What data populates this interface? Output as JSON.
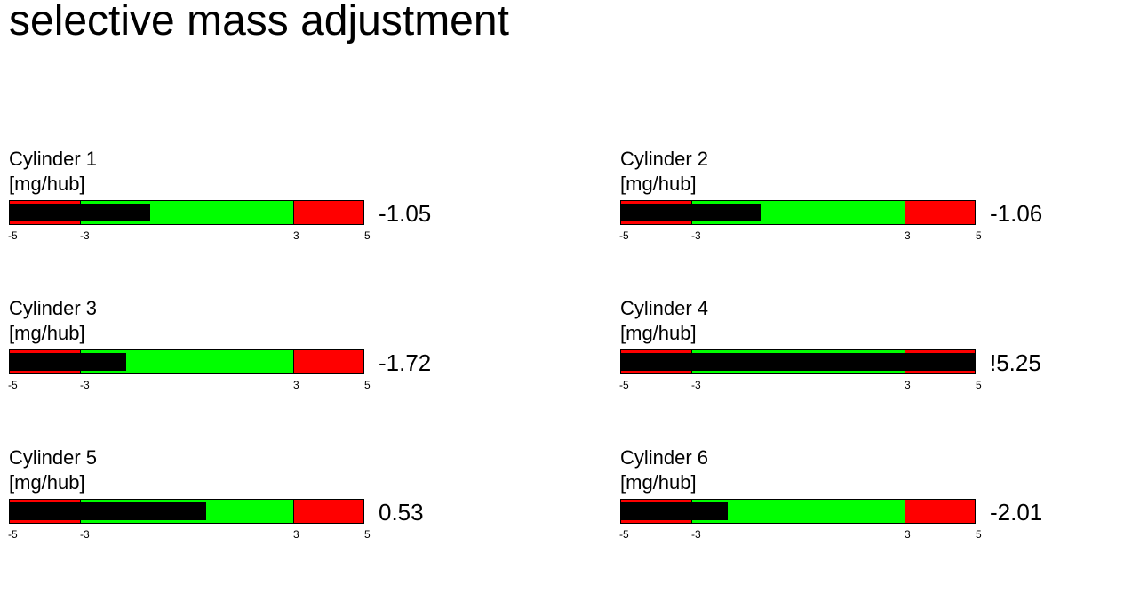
{
  "title": "selective mass adjustment",
  "scale": {
    "min": -5,
    "max": 5,
    "ok_low": -3,
    "ok_high": 3,
    "ticks": [
      "-5",
      "-3",
      "3",
      "5"
    ]
  },
  "colors": {
    "warning_zone": "#ff0000",
    "ok_zone": "#00ff00",
    "value_bar": "#000000"
  },
  "cylinders": [
    {
      "name": "Cylinder 1",
      "unit": "[mg/hub]",
      "value": -1.05,
      "display": "-1.05"
    },
    {
      "name": "Cylinder 2",
      "unit": "[mg/hub]",
      "value": -1.06,
      "display": "-1.06"
    },
    {
      "name": "Cylinder 3",
      "unit": "[mg/hub]",
      "value": -1.72,
      "display": "-1.72"
    },
    {
      "name": "Cylinder 4",
      "unit": "[mg/hub]",
      "value": 5.25,
      "display": "!5.25"
    },
    {
      "name": "Cylinder 5",
      "unit": "[mg/hub]",
      "value": 0.53,
      "display": "0.53"
    },
    {
      "name": "Cylinder 6",
      "unit": "[mg/hub]",
      "value": -2.01,
      "display": "-2.01"
    }
  ]
}
